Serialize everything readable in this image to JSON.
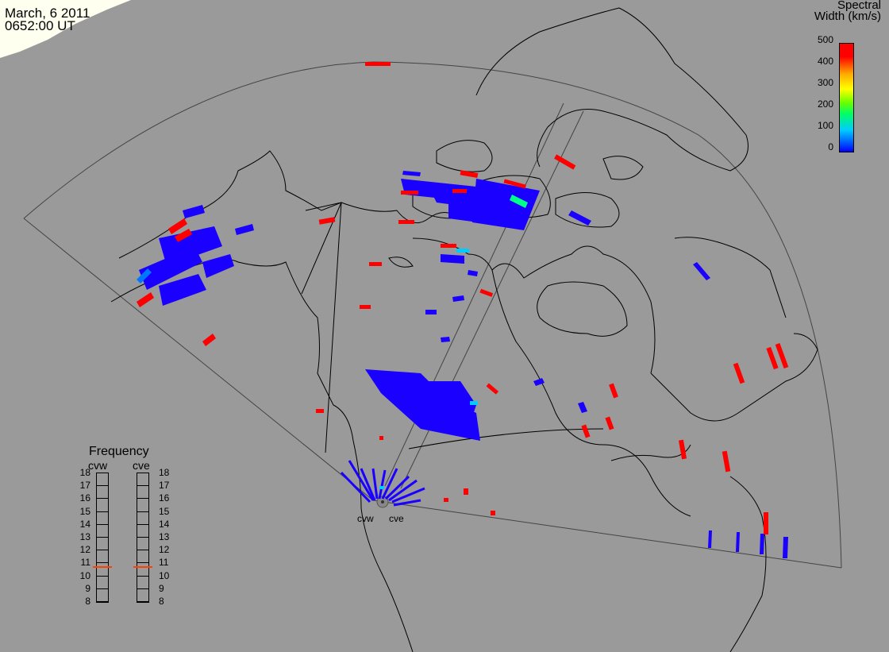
{
  "header": {
    "date": "March, 6 2011",
    "time": "0652:00 UT"
  },
  "colorbar": {
    "title_line1": "Spectral",
    "title_line2": "Width (km/s)",
    "ticks": [
      "500",
      "400",
      "300",
      "200",
      "100",
      "0"
    ]
  },
  "frequency": {
    "title": "Frequency",
    "radars": [
      "cvw",
      "cve"
    ],
    "scale": [
      "18",
      "17",
      "16",
      "15",
      "14",
      "13",
      "12",
      "11",
      "10",
      "9",
      "8"
    ],
    "cvw_value": 10.7,
    "cve_value": 10.7,
    "indicator_color": "#ff4000"
  },
  "map_labels": {
    "radar1": "cvw",
    "radar2": "cve"
  },
  "colors": {
    "background": "#9a9a9a",
    "scatter_low": "#1a00ff",
    "scatter_high": "#ff0000"
  }
}
